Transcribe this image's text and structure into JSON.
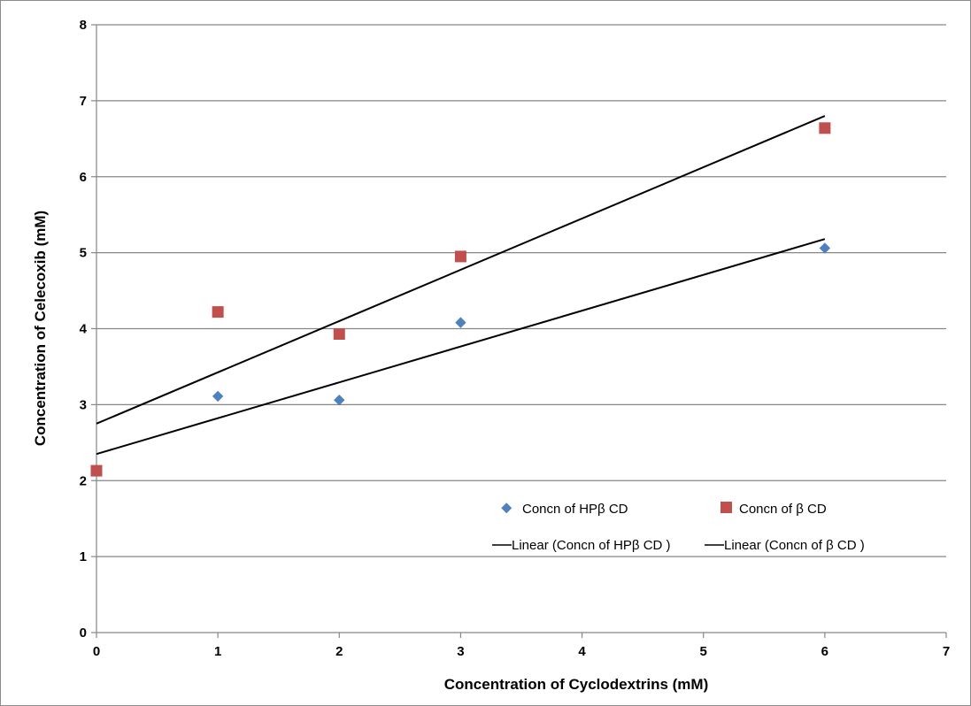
{
  "chart_data": {
    "type": "scatter",
    "title": "",
    "xlabel": "Concentration of Cyclodextrins (mM)",
    "ylabel": "Concentration of Celecoxib (mM)",
    "xlim": [
      0,
      7
    ],
    "ylim": [
      0,
      8
    ],
    "xticks": [
      "0",
      "1",
      "2",
      "3",
      "4",
      "5",
      "6",
      "7"
    ],
    "yticks": [
      "0",
      "1",
      "2",
      "3",
      "4",
      "5",
      "6",
      "7",
      "8"
    ],
    "grid": "horizontal",
    "legend_position": "lower-right",
    "series": [
      {
        "name": "Concn of HPβ CD",
        "marker": "diamond",
        "color": "#4f81bd",
        "x": [
          0,
          1,
          2,
          3,
          6
        ],
        "y": [
          2.13,
          3.11,
          3.06,
          4.08,
          5.06
        ]
      },
      {
        "name": "Concn of β CD",
        "marker": "square",
        "color": "#c0504d",
        "x": [
          0,
          1,
          2,
          3,
          6
        ],
        "y": [
          2.13,
          4.22,
          3.93,
          4.95,
          6.64
        ]
      }
    ],
    "trendlines": [
      {
        "name": "Linear (Concn of HPβ CD )",
        "x": [
          0,
          6
        ],
        "y": [
          2.35,
          5.18
        ],
        "color": "#000000"
      },
      {
        "name": "Linear (Concn of β CD )",
        "x": [
          0,
          6
        ],
        "y": [
          2.75,
          6.8
        ],
        "color": "#000000"
      }
    ]
  }
}
